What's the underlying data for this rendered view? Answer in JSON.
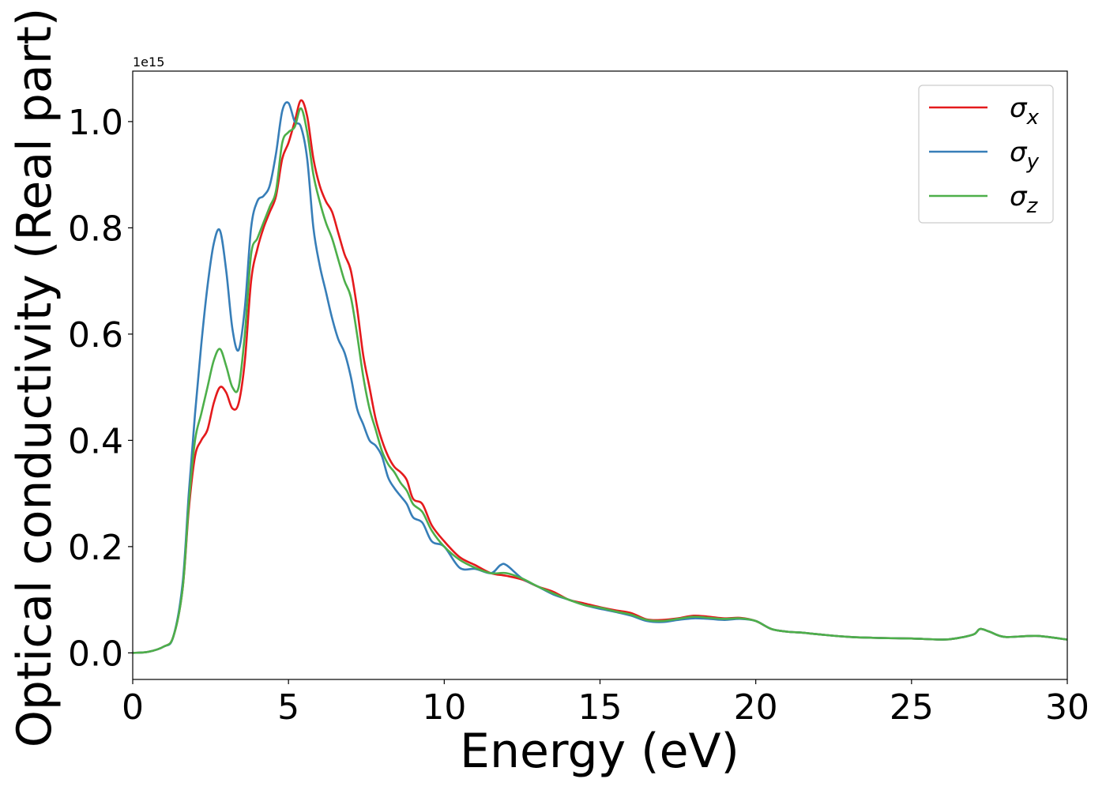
{
  "chart_data": {
    "type": "line",
    "title": "",
    "xlabel": "Energy (eV)",
    "ylabel": "Optical conductivity (Real part)",
    "y_offset_label": "1e15",
    "xlim": [
      0,
      30
    ],
    "ylim": [
      -0.05,
      1.095
    ],
    "xticks": [
      {
        "value": 0,
        "label": "0"
      },
      {
        "value": 5,
        "label": "5"
      },
      {
        "value": 10,
        "label": "10"
      },
      {
        "value": 15,
        "label": "15"
      },
      {
        "value": 20,
        "label": "20"
      },
      {
        "value": 25,
        "label": "25"
      },
      {
        "value": 30,
        "label": "30"
      }
    ],
    "yticks": [
      {
        "value": 0.0,
        "label": "0.0"
      },
      {
        "value": 0.2,
        "label": "0.2"
      },
      {
        "value": 0.4,
        "label": "0.4"
      },
      {
        "value": 0.6,
        "label": "0.6"
      },
      {
        "value": 0.8,
        "label": "0.8"
      },
      {
        "value": 1.0,
        "label": "1.0"
      }
    ],
    "grid": false,
    "legend_position": "top-right",
    "series": [
      {
        "name": "σx",
        "legend_base": "σ",
        "legend_sub": "x",
        "color": "#e41a1c",
        "points": [
          [
            0,
            0
          ],
          [
            0.5,
            0.002
          ],
          [
            1.0,
            0.012
          ],
          [
            1.3,
            0.03
          ],
          [
            1.6,
            0.12
          ],
          [
            1.8,
            0.27
          ],
          [
            2.0,
            0.37
          ],
          [
            2.2,
            0.4
          ],
          [
            2.4,
            0.42
          ],
          [
            2.6,
            0.47
          ],
          [
            2.8,
            0.5
          ],
          [
            3.0,
            0.49
          ],
          [
            3.2,
            0.46
          ],
          [
            3.4,
            0.47
          ],
          [
            3.6,
            0.55
          ],
          [
            3.8,
            0.7
          ],
          [
            4.0,
            0.76
          ],
          [
            4.2,
            0.8
          ],
          [
            4.4,
            0.83
          ],
          [
            4.6,
            0.86
          ],
          [
            4.8,
            0.93
          ],
          [
            5.0,
            0.96
          ],
          [
            5.2,
            1.0
          ],
          [
            5.4,
            1.04
          ],
          [
            5.6,
            1.01
          ],
          [
            5.8,
            0.93
          ],
          [
            6.0,
            0.88
          ],
          [
            6.2,
            0.85
          ],
          [
            6.4,
            0.83
          ],
          [
            6.6,
            0.79
          ],
          [
            6.8,
            0.75
          ],
          [
            7.0,
            0.72
          ],
          [
            7.2,
            0.65
          ],
          [
            7.4,
            0.56
          ],
          [
            7.6,
            0.5
          ],
          [
            7.8,
            0.44
          ],
          [
            8.0,
            0.4
          ],
          [
            8.2,
            0.37
          ],
          [
            8.4,
            0.35
          ],
          [
            8.6,
            0.34
          ],
          [
            8.8,
            0.325
          ],
          [
            9.0,
            0.29
          ],
          [
            9.3,
            0.28
          ],
          [
            9.6,
            0.24
          ],
          [
            10.0,
            0.21
          ],
          [
            10.5,
            0.18
          ],
          [
            11.0,
            0.165
          ],
          [
            11.5,
            0.15
          ],
          [
            12.0,
            0.145
          ],
          [
            12.5,
            0.138
          ],
          [
            13.0,
            0.125
          ],
          [
            13.5,
            0.115
          ],
          [
            14.0,
            0.1
          ],
          [
            14.5,
            0.093
          ],
          [
            15.0,
            0.086
          ],
          [
            15.5,
            0.08
          ],
          [
            16.0,
            0.075
          ],
          [
            16.5,
            0.063
          ],
          [
            17.0,
            0.062
          ],
          [
            17.5,
            0.065
          ],
          [
            18.0,
            0.07
          ],
          [
            18.5,
            0.068
          ],
          [
            19.0,
            0.065
          ],
          [
            19.5,
            0.066
          ],
          [
            20.0,
            0.06
          ],
          [
            20.5,
            0.045
          ],
          [
            21.0,
            0.04
          ],
          [
            21.5,
            0.038
          ],
          [
            22.0,
            0.035
          ],
          [
            23.0,
            0.03
          ],
          [
            24.0,
            0.028
          ],
          [
            25.0,
            0.027
          ],
          [
            26.0,
            0.025
          ],
          [
            26.5,
            0.028
          ],
          [
            27.0,
            0.035
          ],
          [
            27.2,
            0.045
          ],
          [
            27.5,
            0.04
          ],
          [
            28.0,
            0.03
          ],
          [
            29.0,
            0.032
          ],
          [
            30.0,
            0.025
          ]
        ]
      },
      {
        "name": "σy",
        "legend_base": "σ",
        "legend_sub": "y",
        "color": "#377eb8",
        "points": [
          [
            0,
            0
          ],
          [
            0.5,
            0.002
          ],
          [
            1.0,
            0.012
          ],
          [
            1.3,
            0.03
          ],
          [
            1.6,
            0.13
          ],
          [
            1.8,
            0.3
          ],
          [
            2.0,
            0.45
          ],
          [
            2.2,
            0.58
          ],
          [
            2.4,
            0.69
          ],
          [
            2.6,
            0.77
          ],
          [
            2.8,
            0.795
          ],
          [
            3.0,
            0.72
          ],
          [
            3.2,
            0.61
          ],
          [
            3.4,
            0.57
          ],
          [
            3.6,
            0.65
          ],
          [
            3.8,
            0.8
          ],
          [
            4.0,
            0.85
          ],
          [
            4.2,
            0.86
          ],
          [
            4.4,
            0.88
          ],
          [
            4.6,
            0.94
          ],
          [
            4.8,
            1.02
          ],
          [
            5.0,
            1.035
          ],
          [
            5.2,
            1.0
          ],
          [
            5.4,
            0.99
          ],
          [
            5.6,
            0.93
          ],
          [
            5.8,
            0.8
          ],
          [
            6.0,
            0.73
          ],
          [
            6.2,
            0.68
          ],
          [
            6.4,
            0.63
          ],
          [
            6.6,
            0.59
          ],
          [
            6.8,
            0.565
          ],
          [
            7.0,
            0.52
          ],
          [
            7.2,
            0.46
          ],
          [
            7.4,
            0.43
          ],
          [
            7.6,
            0.4
          ],
          [
            7.8,
            0.39
          ],
          [
            8.0,
            0.37
          ],
          [
            8.2,
            0.33
          ],
          [
            8.4,
            0.31
          ],
          [
            8.6,
            0.295
          ],
          [
            8.8,
            0.28
          ],
          [
            9.0,
            0.255
          ],
          [
            9.3,
            0.245
          ],
          [
            9.6,
            0.21
          ],
          [
            10.0,
            0.2
          ],
          [
            10.5,
            0.16
          ],
          [
            11.0,
            0.158
          ],
          [
            11.5,
            0.15
          ],
          [
            11.8,
            0.165
          ],
          [
            12.0,
            0.165
          ],
          [
            12.5,
            0.14
          ],
          [
            13.0,
            0.125
          ],
          [
            13.5,
            0.11
          ],
          [
            14.0,
            0.1
          ],
          [
            14.5,
            0.09
          ],
          [
            15.0,
            0.083
          ],
          [
            15.5,
            0.077
          ],
          [
            16.0,
            0.07
          ],
          [
            16.5,
            0.06
          ],
          [
            17.0,
            0.058
          ],
          [
            17.5,
            0.062
          ],
          [
            18.0,
            0.065
          ],
          [
            18.5,
            0.064
          ],
          [
            19.0,
            0.062
          ],
          [
            19.5,
            0.064
          ],
          [
            20.0,
            0.06
          ],
          [
            20.5,
            0.045
          ],
          [
            21.0,
            0.04
          ],
          [
            21.5,
            0.038
          ],
          [
            22.0,
            0.035
          ],
          [
            23.0,
            0.03
          ],
          [
            24.0,
            0.028
          ],
          [
            25.0,
            0.027
          ],
          [
            26.0,
            0.025
          ],
          [
            26.5,
            0.028
          ],
          [
            27.0,
            0.035
          ],
          [
            27.2,
            0.045
          ],
          [
            27.5,
            0.04
          ],
          [
            28.0,
            0.03
          ],
          [
            29.0,
            0.032
          ],
          [
            30.0,
            0.025
          ]
        ]
      },
      {
        "name": "σz",
        "legend_base": "σ",
        "legend_sub": "z",
        "color": "#4daf4a",
        "points": [
          [
            0,
            0
          ],
          [
            0.5,
            0.002
          ],
          [
            1.0,
            0.012
          ],
          [
            1.3,
            0.03
          ],
          [
            1.6,
            0.12
          ],
          [
            1.8,
            0.28
          ],
          [
            2.0,
            0.4
          ],
          [
            2.2,
            0.45
          ],
          [
            2.4,
            0.5
          ],
          [
            2.6,
            0.55
          ],
          [
            2.8,
            0.572
          ],
          [
            3.0,
            0.54
          ],
          [
            3.2,
            0.5
          ],
          [
            3.4,
            0.5
          ],
          [
            3.6,
            0.6
          ],
          [
            3.8,
            0.75
          ],
          [
            4.0,
            0.78
          ],
          [
            4.2,
            0.81
          ],
          [
            4.4,
            0.84
          ],
          [
            4.6,
            0.87
          ],
          [
            4.8,
            0.96
          ],
          [
            5.0,
            0.98
          ],
          [
            5.2,
            0.99
          ],
          [
            5.4,
            1.025
          ],
          [
            5.6,
            0.98
          ],
          [
            5.8,
            0.9
          ],
          [
            6.0,
            0.85
          ],
          [
            6.2,
            0.81
          ],
          [
            6.4,
            0.78
          ],
          [
            6.6,
            0.74
          ],
          [
            6.8,
            0.7
          ],
          [
            7.0,
            0.67
          ],
          [
            7.2,
            0.6
          ],
          [
            7.4,
            0.52
          ],
          [
            7.6,
            0.46
          ],
          [
            7.8,
            0.42
          ],
          [
            8.0,
            0.38
          ],
          [
            8.2,
            0.355
          ],
          [
            8.4,
            0.34
          ],
          [
            8.6,
            0.32
          ],
          [
            8.8,
            0.305
          ],
          [
            9.0,
            0.28
          ],
          [
            9.3,
            0.265
          ],
          [
            9.6,
            0.23
          ],
          [
            10.0,
            0.2
          ],
          [
            10.5,
            0.175
          ],
          [
            11.0,
            0.16
          ],
          [
            11.5,
            0.15
          ],
          [
            12.0,
            0.15
          ],
          [
            12.5,
            0.14
          ],
          [
            13.0,
            0.125
          ],
          [
            13.5,
            0.112
          ],
          [
            14.0,
            0.1
          ],
          [
            14.5,
            0.09
          ],
          [
            15.0,
            0.085
          ],
          [
            15.5,
            0.078
          ],
          [
            16.0,
            0.072
          ],
          [
            16.5,
            0.062
          ],
          [
            17.0,
            0.06
          ],
          [
            17.5,
            0.064
          ],
          [
            18.0,
            0.068
          ],
          [
            18.5,
            0.066
          ],
          [
            19.0,
            0.064
          ],
          [
            19.5,
            0.065
          ],
          [
            20.0,
            0.06
          ],
          [
            20.5,
            0.045
          ],
          [
            21.0,
            0.04
          ],
          [
            21.5,
            0.038
          ],
          [
            22.0,
            0.035
          ],
          [
            23.0,
            0.03
          ],
          [
            24.0,
            0.028
          ],
          [
            25.0,
            0.027
          ],
          [
            26.0,
            0.025
          ],
          [
            26.5,
            0.028
          ],
          [
            27.0,
            0.035
          ],
          [
            27.2,
            0.045
          ],
          [
            27.5,
            0.04
          ],
          [
            28.0,
            0.03
          ],
          [
            29.0,
            0.032
          ],
          [
            30.0,
            0.025
          ]
        ]
      }
    ]
  }
}
